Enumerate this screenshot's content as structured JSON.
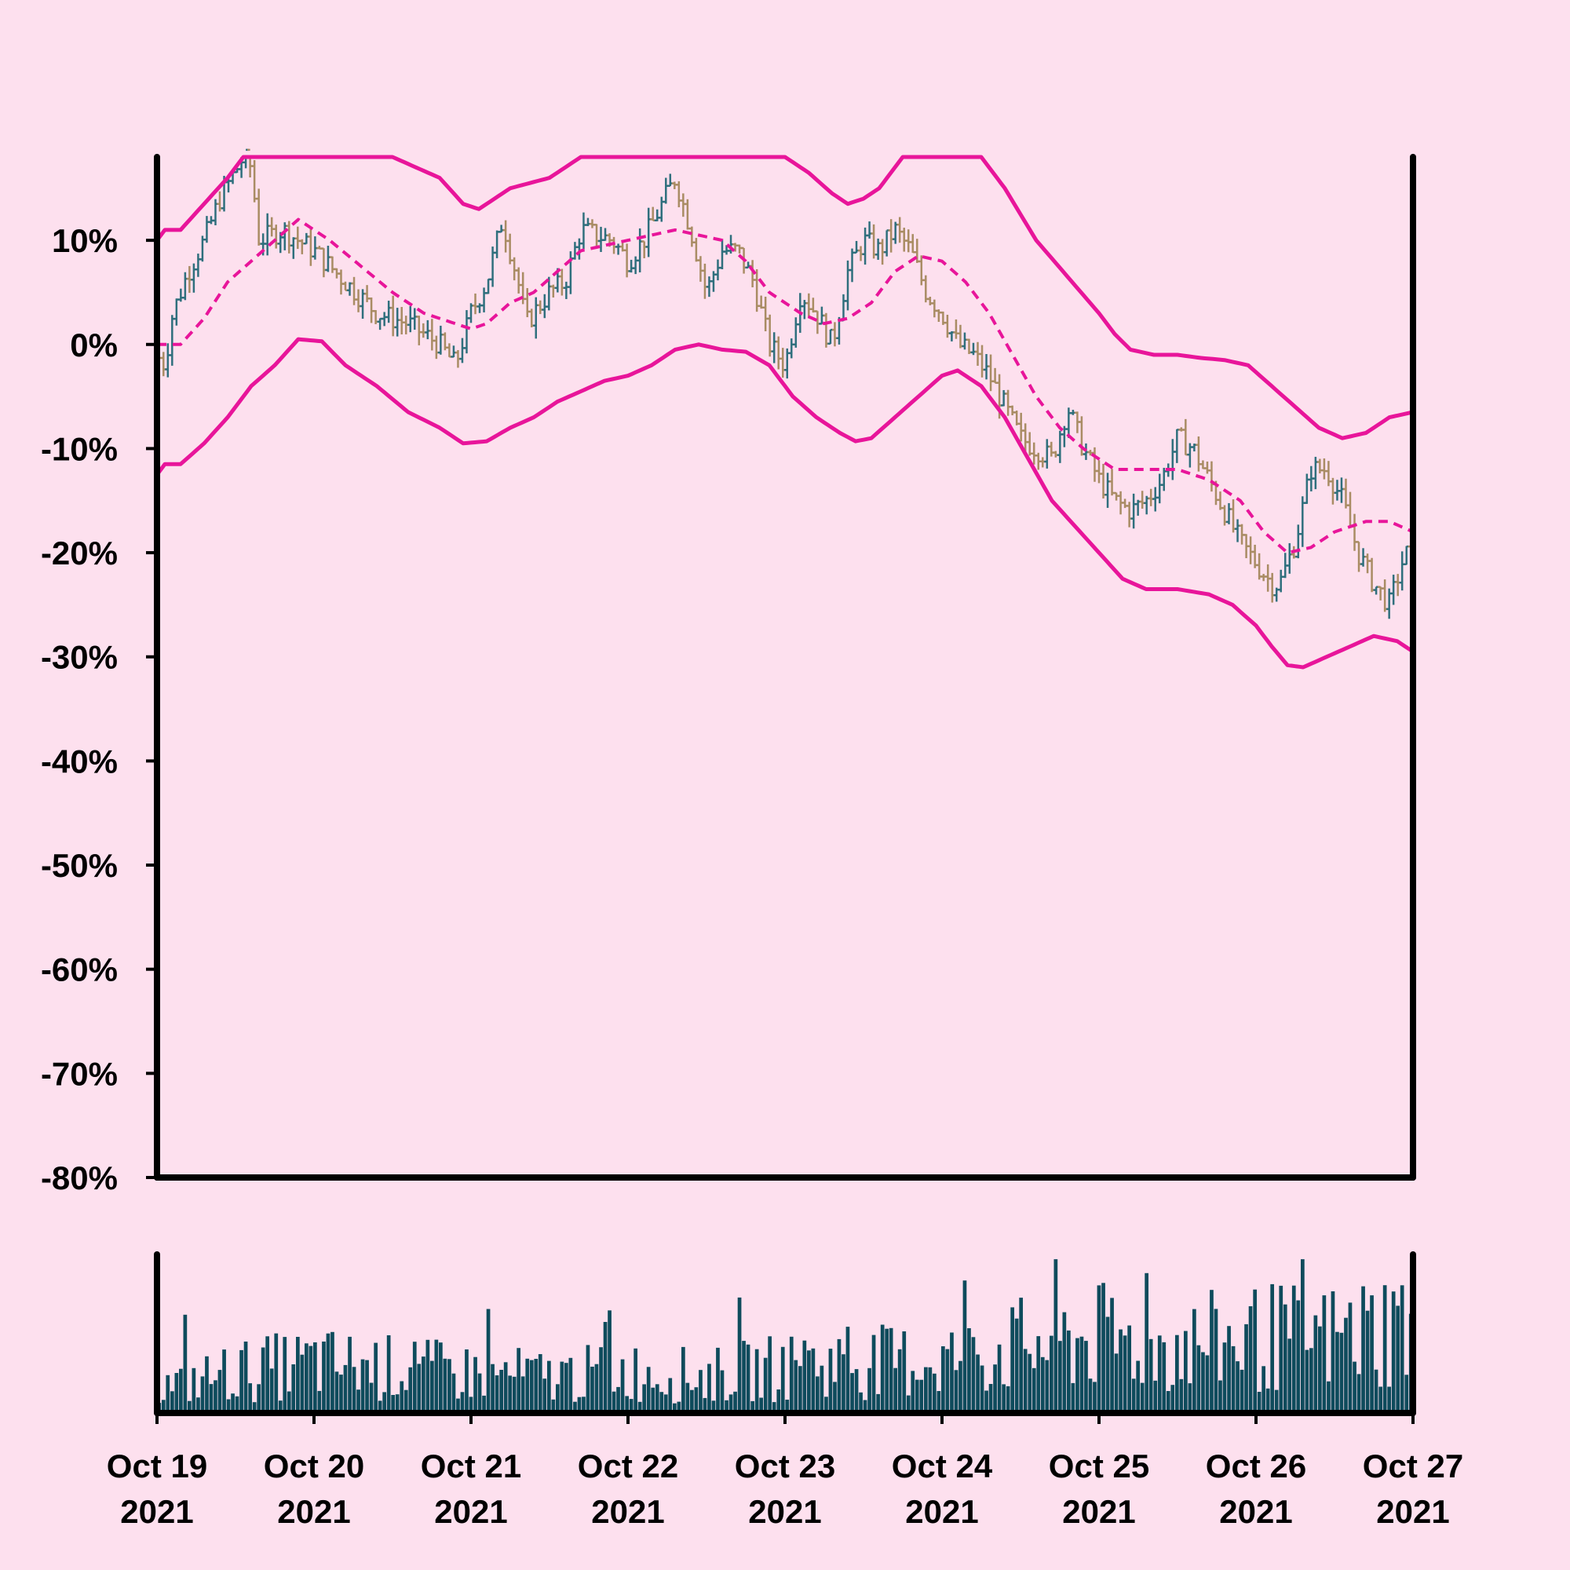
{
  "colors": {
    "background": "#fde0ee",
    "up_bar": "#2f6f7d",
    "down_bar": "#a98c64",
    "band": "#e8159a",
    "middle": "#e8159a",
    "volume": "#0e4b5c",
    "axis": "#000000"
  },
  "chart_data": [
    {
      "type": "ohlc",
      "indicator": "Bollinger Bands (upper, middle, lower), upper band clipped at top of plot",
      "ylim": [
        -80,
        18
      ],
      "y_unit": "%",
      "y_ticks": [
        "10%",
        "0%",
        "-10%",
        "-20%",
        "-30%",
        "-40%",
        "-50%",
        "-60%",
        "-70%",
        "-80%"
      ],
      "y_tick_values": [
        10,
        0,
        -10,
        -20,
        -30,
        -40,
        -50,
        -60,
        -70,
        -80
      ],
      "x_range": [
        "2021-10-19",
        "2021-10-27"
      ],
      "x_ticks": [
        {
          "line1": "Oct 19",
          "line2": "2021"
        },
        {
          "line1": "Oct 20",
          "line2": "2021"
        },
        {
          "line1": "Oct 21",
          "line2": "2021"
        },
        {
          "line1": "Oct 22",
          "line2": "2021"
        },
        {
          "line1": "Oct 23",
          "line2": "2021"
        },
        {
          "line1": "Oct 24",
          "line2": "2021"
        },
        {
          "line1": "Oct 25",
          "line2": "2021"
        },
        {
          "line1": "Oct 26",
          "line2": "2021"
        },
        {
          "line1": "Oct 27",
          "line2": "2021"
        }
      ],
      "close_keypoints": [
        [
          0.0,
          -1
        ],
        [
          0.05,
          -2
        ],
        [
          0.1,
          3
        ],
        [
          0.2,
          7
        ],
        [
          0.3,
          10
        ],
        [
          0.4,
          14
        ],
        [
          0.55,
          18
        ],
        [
          0.6,
          17
        ],
        [
          0.65,
          10
        ],
        [
          0.8,
          11
        ],
        [
          1.0,
          9
        ],
        [
          1.2,
          6
        ],
        [
          1.4,
          3
        ],
        [
          1.6,
          2
        ],
        [
          1.8,
          0
        ],
        [
          1.9,
          -2
        ],
        [
          2.0,
          3
        ],
        [
          2.1,
          6
        ],
        [
          2.2,
          12
        ],
        [
          2.3,
          6
        ],
        [
          2.35,
          2
        ],
        [
          2.5,
          5
        ],
        [
          2.6,
          6
        ],
        [
          2.7,
          11
        ],
        [
          2.9,
          10
        ],
        [
          3.0,
          8
        ],
        [
          3.1,
          10
        ],
        [
          3.2,
          13
        ],
        [
          3.3,
          16
        ],
        [
          3.4,
          11
        ],
        [
          3.5,
          5
        ],
        [
          3.6,
          9
        ],
        [
          3.7,
          9
        ],
        [
          3.8,
          6
        ],
        [
          3.9,
          0
        ],
        [
          4.0,
          -2
        ],
        [
          4.1,
          5
        ],
        [
          4.2,
          3
        ],
        [
          4.3,
          0
        ],
        [
          4.4,
          7
        ],
        [
          4.5,
          10
        ],
        [
          4.6,
          9
        ],
        [
          4.7,
          11
        ],
        [
          4.8,
          9
        ],
        [
          4.9,
          5
        ],
        [
          5.0,
          3
        ],
        [
          5.1,
          0
        ],
        [
          5.2,
          -1
        ],
        [
          5.3,
          -3
        ],
        [
          5.4,
          -6
        ],
        [
          5.5,
          -9
        ],
        [
          5.6,
          -10
        ],
        [
          5.7,
          -11
        ],
        [
          5.8,
          -6
        ],
        [
          5.9,
          -10
        ],
        [
          6.0,
          -13
        ],
        [
          6.1,
          -15
        ],
        [
          6.2,
          -16
        ],
        [
          6.3,
          -15
        ],
        [
          6.4,
          -13
        ],
        [
          6.5,
          -9
        ],
        [
          6.6,
          -10
        ],
        [
          6.7,
          -13
        ],
        [
          6.8,
          -16
        ],
        [
          6.9,
          -19
        ],
        [
          7.0,
          -21
        ],
        [
          7.1,
          -23
        ],
        [
          7.15,
          -23
        ],
        [
          7.25,
          -19
        ],
        [
          7.35,
          -12
        ],
        [
          7.45,
          -12
        ],
        [
          7.55,
          -15
        ],
        [
          7.65,
          -20
        ],
        [
          7.75,
          -23
        ],
        [
          7.85,
          -25
        ],
        [
          7.95,
          -20
        ],
        [
          8.0,
          -21
        ]
      ],
      "upper_band_keypoints": [
        [
          0.0,
          10
        ],
        [
          0.05,
          11
        ],
        [
          0.15,
          11
        ],
        [
          0.3,
          13.5
        ],
        [
          0.45,
          16
        ],
        [
          0.55,
          18
        ],
        [
          1.5,
          18
        ],
        [
          1.65,
          17
        ],
        [
          1.8,
          16
        ],
        [
          1.95,
          13.5
        ],
        [
          2.05,
          13
        ],
        [
          2.15,
          14
        ],
        [
          2.25,
          15
        ],
        [
          2.5,
          16
        ],
        [
          2.6,
          17
        ],
        [
          2.7,
          18
        ],
        [
          4.0,
          18
        ],
        [
          4.15,
          16.5
        ],
        [
          4.3,
          14.5
        ],
        [
          4.4,
          13.5
        ],
        [
          4.5,
          14
        ],
        [
          4.6,
          15
        ],
        [
          4.75,
          18
        ],
        [
          5.25,
          18
        ],
        [
          5.4,
          15
        ],
        [
          5.6,
          10
        ],
        [
          5.8,
          6.5
        ],
        [
          6.0,
          3
        ],
        [
          6.1,
          1
        ],
        [
          6.2,
          -0.5
        ],
        [
          6.35,
          -1
        ],
        [
          6.5,
          -1
        ],
        [
          6.65,
          -1.3
        ],
        [
          6.8,
          -1.5
        ],
        [
          6.95,
          -2
        ],
        [
          7.1,
          -4
        ],
        [
          7.25,
          -6
        ],
        [
          7.4,
          -8
        ],
        [
          7.55,
          -9
        ],
        [
          7.7,
          -8.5
        ],
        [
          7.85,
          -7
        ],
        [
          8.0,
          -6.5
        ]
      ],
      "middle_band_keypoints": [
        [
          0.0,
          0
        ],
        [
          0.15,
          0
        ],
        [
          0.3,
          2.5
        ],
        [
          0.45,
          6
        ],
        [
          0.6,
          8
        ],
        [
          0.75,
          10
        ],
        [
          0.9,
          12
        ],
        [
          1.1,
          10
        ],
        [
          1.3,
          7.5
        ],
        [
          1.5,
          5
        ],
        [
          1.7,
          3
        ],
        [
          1.9,
          2
        ],
        [
          2.0,
          1.5
        ],
        [
          2.1,
          2
        ],
        [
          2.25,
          4
        ],
        [
          2.4,
          5
        ],
        [
          2.55,
          7
        ],
        [
          2.7,
          9
        ],
        [
          2.85,
          9.5
        ],
        [
          3.0,
          10
        ],
        [
          3.15,
          10.5
        ],
        [
          3.3,
          11
        ],
        [
          3.45,
          10.5
        ],
        [
          3.6,
          10
        ],
        [
          3.75,
          8
        ],
        [
          3.9,
          5
        ],
        [
          4.1,
          3
        ],
        [
          4.25,
          2
        ],
        [
          4.4,
          2.5
        ],
        [
          4.55,
          4
        ],
        [
          4.7,
          7
        ],
        [
          4.85,
          8.5
        ],
        [
          5.0,
          8
        ],
        [
          5.15,
          6
        ],
        [
          5.3,
          3
        ],
        [
          5.45,
          -1
        ],
        [
          5.6,
          -5
        ],
        [
          5.75,
          -8
        ],
        [
          5.9,
          -10
        ],
        [
          6.1,
          -12
        ],
        [
          6.3,
          -12
        ],
        [
          6.5,
          -12
        ],
        [
          6.7,
          -13
        ],
        [
          6.9,
          -15
        ],
        [
          7.05,
          -18
        ],
        [
          7.2,
          -20
        ],
        [
          7.35,
          -19.5
        ],
        [
          7.5,
          -18
        ],
        [
          7.7,
          -17
        ],
        [
          7.85,
          -17
        ],
        [
          8.0,
          -18
        ]
      ],
      "lower_band_keypoints": [
        [
          0.0,
          -12.5
        ],
        [
          0.05,
          -11.5
        ],
        [
          0.15,
          -11.5
        ],
        [
          0.3,
          -9.5
        ],
        [
          0.45,
          -7
        ],
        [
          0.6,
          -4
        ],
        [
          0.75,
          -2
        ],
        [
          0.9,
          0.5
        ],
        [
          1.05,
          0.3
        ],
        [
          1.2,
          -2
        ],
        [
          1.4,
          -4
        ],
        [
          1.6,
          -6.5
        ],
        [
          1.8,
          -8
        ],
        [
          1.95,
          -9.5
        ],
        [
          2.1,
          -9.3
        ],
        [
          2.25,
          -8
        ],
        [
          2.4,
          -7
        ],
        [
          2.55,
          -5.5
        ],
        [
          2.7,
          -4.5
        ],
        [
          2.85,
          -3.5
        ],
        [
          3.0,
          -3
        ],
        [
          3.15,
          -2
        ],
        [
          3.3,
          -0.5
        ],
        [
          3.45,
          0
        ],
        [
          3.6,
          -0.5
        ],
        [
          3.75,
          -0.7
        ],
        [
          3.9,
          -2
        ],
        [
          4.05,
          -5
        ],
        [
          4.2,
          -7
        ],
        [
          4.35,
          -8.5
        ],
        [
          4.45,
          -9.3
        ],
        [
          4.55,
          -9
        ],
        [
          4.7,
          -7
        ],
        [
          4.85,
          -5
        ],
        [
          5.0,
          -3
        ],
        [
          5.1,
          -2.5
        ],
        [
          5.25,
          -4
        ],
        [
          5.4,
          -7
        ],
        [
          5.55,
          -11
        ],
        [
          5.7,
          -15
        ],
        [
          5.85,
          -17.5
        ],
        [
          6.0,
          -20
        ],
        [
          6.15,
          -22.5
        ],
        [
          6.3,
          -23.5
        ],
        [
          6.5,
          -23.5
        ],
        [
          6.7,
          -24
        ],
        [
          6.85,
          -25
        ],
        [
          7.0,
          -27
        ],
        [
          7.1,
          -29
        ],
        [
          7.2,
          -30.8
        ],
        [
          7.3,
          -31
        ],
        [
          7.45,
          -30
        ],
        [
          7.6,
          -29
        ],
        [
          7.75,
          -28
        ],
        [
          7.9,
          -28.5
        ],
        [
          8.0,
          -29.5
        ]
      ],
      "volume_keypoints": [
        [
          0.0,
          0.15
        ],
        [
          0.5,
          0.25
        ],
        [
          1.0,
          0.3
        ],
        [
          1.5,
          0.27
        ],
        [
          2.0,
          0.24
        ],
        [
          2.5,
          0.22
        ],
        [
          3.0,
          0.25
        ],
        [
          3.5,
          0.22
        ],
        [
          4.0,
          0.28
        ],
        [
          4.5,
          0.3
        ],
        [
          5.0,
          0.32
        ],
        [
          5.5,
          0.4
        ],
        [
          6.0,
          0.45
        ],
        [
          6.5,
          0.4
        ],
        [
          7.0,
          0.45
        ],
        [
          7.5,
          0.45
        ],
        [
          8.0,
          0.55
        ]
      ]
    }
  ]
}
